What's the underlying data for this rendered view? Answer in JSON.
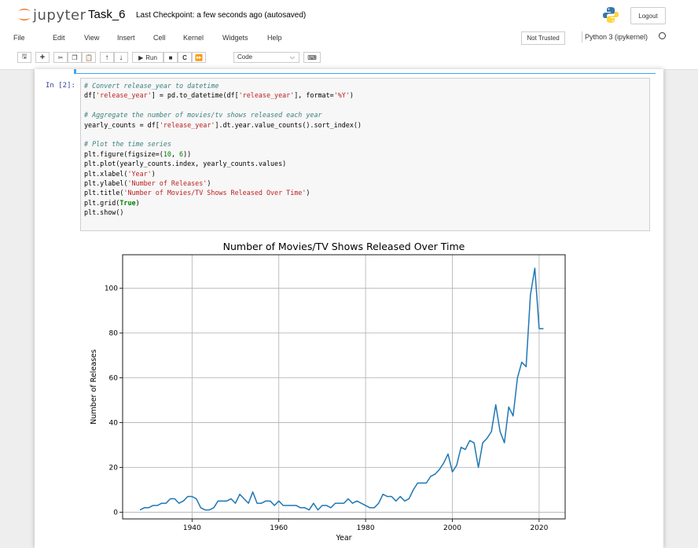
{
  "header": {
    "logo_text": "jupyter",
    "notebook_name": "Task_6",
    "checkpoint": "Last Checkpoint: a few seconds ago  (autosaved)",
    "logout_label": "Logout"
  },
  "menu": {
    "items": [
      "File",
      "Edit",
      "View",
      "Insert",
      "Cell",
      "Kernel",
      "Widgets",
      "Help"
    ],
    "trust_label": "Not Trusted",
    "kernel_label": "Python 3 (ipykernel)"
  },
  "toolbar": {
    "run_label": "Run",
    "cell_type": "Code",
    "icons": [
      "save-icon",
      "add-icon",
      "cut-icon",
      "copy-icon",
      "paste-icon",
      "move-up-icon",
      "move-down-icon",
      "run-icon",
      "stop-icon",
      "restart-icon",
      "fast-forward-icon",
      "keyboard-icon"
    ]
  },
  "cell": {
    "prompt": "In [2]:",
    "code_lines": [
      [
        [
          "cm",
          "# Convert release_year to datetime"
        ]
      ],
      [
        [
          "",
          "df["
        ],
        [
          "st",
          "'release_year'"
        ],
        [
          "",
          "] = pd.to_datetime(df["
        ],
        [
          "st",
          "'release_year'"
        ],
        [
          "",
          "], format="
        ],
        [
          "st",
          "'%Y'"
        ],
        [
          "",
          ")"
        ]
      ],
      [
        [
          "",
          ""
        ]
      ],
      [
        [
          "cm",
          "# Aggregate the number of movies/tv shows released each year"
        ]
      ],
      [
        [
          "",
          "yearly_counts = df["
        ],
        [
          "st",
          "'release_year'"
        ],
        [
          "",
          "].dt.year.value_counts().sort_index()"
        ]
      ],
      [
        [
          "",
          ""
        ]
      ],
      [
        [
          "cm",
          "# Plot the time series"
        ]
      ],
      [
        [
          "",
          "plt.figure(figsize=("
        ],
        [
          "nm",
          "10"
        ],
        [
          "",
          ", "
        ],
        [
          "nm",
          "6"
        ],
        [
          "",
          "))"
        ]
      ],
      [
        [
          "",
          "plt.plot(yearly_counts.index, yearly_counts.values)"
        ]
      ],
      [
        [
          "",
          "plt.xlabel("
        ],
        [
          "st",
          "'Year'"
        ],
        [
          "",
          ")"
        ]
      ],
      [
        [
          "",
          "plt.ylabel("
        ],
        [
          "st",
          "'Number of Releases'"
        ],
        [
          "",
          ")"
        ]
      ],
      [
        [
          "",
          "plt.title("
        ],
        [
          "st",
          "'Number of Movies/TV Shows Released Over Time'"
        ],
        [
          "",
          ")"
        ]
      ],
      [
        [
          "",
          "plt.grid("
        ],
        [
          "kw",
          "True"
        ],
        [
          "",
          ")"
        ]
      ],
      [
        [
          "",
          "plt.show()"
        ]
      ]
    ]
  },
  "chart_data": {
    "type": "line",
    "title": "Number of Movies/TV Shows Released Over Time",
    "xlabel": "Year",
    "ylabel": "Number of Releases",
    "xlim": [
      1924,
      2026
    ],
    "ylim": [
      -3,
      115
    ],
    "xticks": [
      1940,
      1960,
      1980,
      2000,
      2020
    ],
    "yticks": [
      0,
      20,
      40,
      60,
      80,
      100
    ],
    "grid": true,
    "line_color": "#1f77b4",
    "series": [
      {
        "x": [
          1928,
          1929,
          1930,
          1931,
          1932,
          1933,
          1934,
          1935,
          1936,
          1937,
          1938,
          1939,
          1940,
          1941,
          1942,
          1943,
          1944,
          1945,
          1946,
          1947,
          1948,
          1949,
          1950,
          1951,
          1952,
          1953,
          1954,
          1955,
          1956,
          1957,
          1958,
          1959,
          1960,
          1961,
          1962,
          1963,
          1964,
          1965,
          1966,
          1967,
          1968,
          1969,
          1970,
          1971,
          1972,
          1973,
          1974,
          1975,
          1976,
          1977,
          1978,
          1979,
          1980,
          1981,
          1982,
          1983,
          1984,
          1985,
          1986,
          1987,
          1988,
          1989,
          1990,
          1991,
          1992,
          1993,
          1994,
          1995,
          1996,
          1997,
          1998,
          1999,
          2000,
          2001,
          2002,
          2003,
          2004,
          2005,
          2006,
          2007,
          2008,
          2009,
          2010,
          2011,
          2012,
          2013,
          2014,
          2015,
          2016,
          2017,
          2018,
          2019,
          2020,
          2021
        ],
        "values": [
          1,
          2,
          2,
          3,
          3,
          4,
          4,
          6,
          6,
          4,
          5,
          7,
          7,
          6,
          2,
          1,
          1,
          2,
          5,
          5,
          5,
          6,
          4,
          8,
          6,
          4,
          9,
          4,
          4,
          5,
          5,
          3,
          5,
          3,
          3,
          3,
          3,
          2,
          2,
          1,
          4,
          1,
          3,
          3,
          2,
          4,
          4,
          4,
          6,
          4,
          5,
          4,
          3,
          2,
          2,
          4,
          8,
          7,
          7,
          5,
          7,
          5,
          6,
          10,
          13,
          13,
          13,
          16,
          17,
          19,
          22,
          26,
          18,
          21,
          29,
          28,
          32,
          31,
          20,
          31,
          33,
          36,
          48,
          36,
          31,
          47,
          43,
          60,
          67,
          65,
          97,
          109,
          82,
          82
        ]
      }
    ]
  }
}
